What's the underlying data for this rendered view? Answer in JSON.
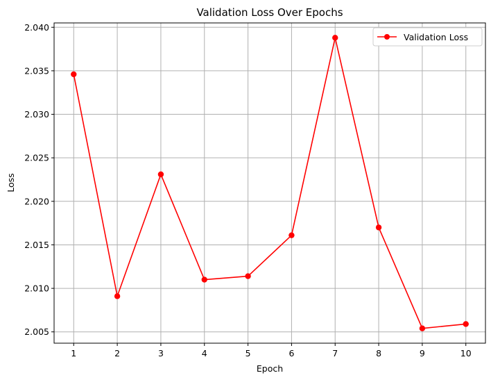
{
  "chart_data": {
    "type": "line",
    "title": "Validation Loss Over Epochs",
    "xlabel": "Epoch",
    "ylabel": "Loss",
    "x": [
      1,
      2,
      3,
      4,
      5,
      6,
      7,
      8,
      9,
      10
    ],
    "series": [
      {
        "name": "Validation Loss",
        "values": [
          2.0346,
          2.0091,
          2.0231,
          2.011,
          2.0114,
          2.0161,
          2.0388,
          2.017,
          2.0054,
          2.0059
        ],
        "color": "#ff0000",
        "marker": "circle"
      }
    ],
    "xticks": [
      "1",
      "2",
      "3",
      "4",
      "5",
      "6",
      "7",
      "8",
      "9",
      "10"
    ],
    "yticks": [
      "2.005",
      "2.010",
      "2.015",
      "2.020",
      "2.025",
      "2.030",
      "2.035",
      "2.040"
    ],
    "xlim": [
      0.55,
      10.45
    ],
    "ylim": [
      2.0037,
      2.0405
    ],
    "grid": true,
    "legend_position": "top-right"
  }
}
